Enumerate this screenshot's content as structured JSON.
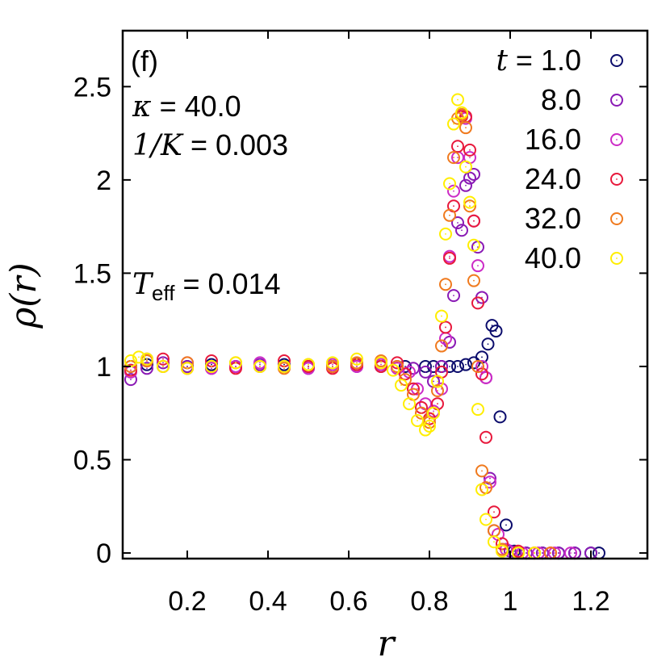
{
  "chart_data": {
    "type": "scatter",
    "panel_label": "(f)",
    "xlabel": "r",
    "ylabel": "ρ(r)",
    "xlim": [
      0.04,
      1.34
    ],
    "ylim": [
      -0.03,
      2.8
    ],
    "xticks": [
      {
        "value": 0.2,
        "label": "0.2"
      },
      {
        "value": 0.4,
        "label": "0.4"
      },
      {
        "value": 0.6,
        "label": "0.6"
      },
      {
        "value": 0.8,
        "label": "0.8"
      },
      {
        "value": 1.0,
        "label": "1"
      },
      {
        "value": 1.2,
        "label": "1.2"
      }
    ],
    "yticks": [
      {
        "value": 0,
        "label": "0"
      },
      {
        "value": 0.5,
        "label": "0.5"
      },
      {
        "value": 1,
        "label": "1"
      },
      {
        "value": 1.5,
        "label": "1.5"
      },
      {
        "value": 2,
        "label": "2"
      },
      {
        "value": 2.5,
        "label": "2.5"
      }
    ],
    "grid": false,
    "legend_position": "top-right",
    "annotations": {
      "kappa": {
        "symbol": "κ",
        "text": " = 40.0"
      },
      "inv_k": {
        "symbol": "1/K",
        "text": " = 0.003"
      },
      "t_eff": {
        "symbol": "T",
        "subscript": "eff",
        "text": " = 0.014"
      }
    },
    "legend_prefix": "t = ",
    "series": [
      {
        "name": "1.0",
        "color": "#0b0c6c",
        "x": [
          0.06,
          0.1,
          0.14,
          0.2,
          0.26,
          0.32,
          0.38,
          0.44,
          0.5,
          0.56,
          0.62,
          0.68,
          0.74,
          0.79,
          0.81,
          0.83,
          0.85,
          0.87,
          0.89,
          0.91,
          0.93,
          0.945,
          0.955,
          0.965,
          0.975,
          0.99,
          1.01,
          1.04,
          1.08,
          1.12,
          1.16,
          1.2,
          1.22
        ],
        "y": [
          1.0,
          1.01,
          1.0,
          1.0,
          1.01,
          1.0,
          1.0,
          1.01,
          1.0,
          1.0,
          1.01,
          1.0,
          1.0,
          1.0,
          1.0,
          1.0,
          1.0,
          1.0,
          1.01,
          1.02,
          1.05,
          1.12,
          1.22,
          1.19,
          0.73,
          0.15,
          0.01,
          0.0,
          0.0,
          0.0,
          0.0,
          0.0,
          0.0
        ]
      },
      {
        "name": "8.0",
        "color": "#8a1ab5",
        "x": [
          0.06,
          0.1,
          0.14,
          0.2,
          0.26,
          0.32,
          0.38,
          0.44,
          0.5,
          0.56,
          0.62,
          0.68,
          0.72,
          0.76,
          0.79,
          0.81,
          0.83,
          0.85,
          0.86,
          0.87,
          0.88,
          0.89,
          0.9,
          0.91,
          0.92,
          0.93,
          0.94,
          0.95,
          0.96,
          0.98,
          1.0,
          1.04,
          1.08,
          1.12,
          1.16,
          1.2
        ],
        "y": [
          0.93,
          0.99,
          1.02,
          1.0,
          0.99,
          1.0,
          1.01,
          1.0,
          0.99,
          1.0,
          1.0,
          1.0,
          1.0,
          0.99,
          0.97,
          0.92,
          1.0,
          1.13,
          1.38,
          1.77,
          1.73,
          1.97,
          2.01,
          2.03,
          1.64,
          1.37,
          0.94,
          0.4,
          0.12,
          0.02,
          0.01,
          0.0,
          0.0,
          0.0,
          0.0,
          0.0
        ]
      },
      {
        "name": "16.0",
        "color": "#cc2bc6",
        "x": [
          0.06,
          0.1,
          0.14,
          0.2,
          0.26,
          0.32,
          0.38,
          0.44,
          0.5,
          0.56,
          0.62,
          0.68,
          0.72,
          0.75,
          0.77,
          0.79,
          0.81,
          0.83,
          0.84,
          0.85,
          0.86,
          0.87,
          0.88,
          0.89,
          0.9,
          0.91,
          0.92,
          0.93,
          0.94,
          0.95,
          0.97,
          0.99,
          1.03,
          1.07,
          1.11,
          1.15
        ],
        "y": [
          0.97,
          1.04,
          1.0,
          1.02,
          0.99,
          1.0,
          1.02,
          1.0,
          0.99,
          1.01,
          1.0,
          1.01,
          0.99,
          0.97,
          0.88,
          0.8,
          0.76,
          0.88,
          1.15,
          1.59,
          1.94,
          2.12,
          2.35,
          2.33,
          2.12,
          1.78,
          1.54,
          1.0,
          0.94,
          0.38,
          0.1,
          0.02,
          0.0,
          0.0,
          0.0,
          0.0
        ]
      },
      {
        "name": "24.0",
        "color": "#e8193c",
        "x": [
          0.06,
          0.1,
          0.14,
          0.2,
          0.26,
          0.32,
          0.38,
          0.44,
          0.5,
          0.56,
          0.62,
          0.68,
          0.72,
          0.74,
          0.76,
          0.78,
          0.8,
          0.82,
          0.83,
          0.84,
          0.85,
          0.86,
          0.87,
          0.88,
          0.89,
          0.9,
          0.91,
          0.92,
          0.93,
          0.94,
          0.96,
          0.98,
          1.02,
          1.06,
          1.1
        ],
        "y": [
          0.98,
          1.03,
          1.04,
          0.99,
          1.03,
          0.99,
          1.0,
          1.03,
          1.0,
          0.99,
          1.01,
          1.0,
          1.02,
          0.96,
          0.88,
          0.78,
          0.72,
          0.8,
          0.97,
          1.21,
          1.58,
          1.86,
          2.18,
          2.34,
          2.34,
          2.16,
          1.78,
          1.34,
          0.96,
          0.62,
          0.22,
          0.05,
          0.01,
          0.0,
          0.0
        ]
      },
      {
        "name": "32.0",
        "color": "#f07a1e",
        "x": [
          0.06,
          0.1,
          0.14,
          0.2,
          0.26,
          0.32,
          0.38,
          0.44,
          0.5,
          0.56,
          0.62,
          0.68,
          0.72,
          0.74,
          0.76,
          0.78,
          0.8,
          0.81,
          0.82,
          0.83,
          0.84,
          0.85,
          0.86,
          0.87,
          0.88,
          0.89,
          0.9,
          0.91,
          0.92,
          0.93,
          0.94,
          0.96,
          0.98,
          1.02,
          1.06,
          1.1
        ],
        "y": [
          1.0,
          1.03,
          1.0,
          1.02,
          1.0,
          1.02,
          1.0,
          0.99,
          1.01,
          1.0,
          1.02,
          1.03,
          1.0,
          0.93,
          0.85,
          0.75,
          0.7,
          0.75,
          0.87,
          1.11,
          1.44,
          1.81,
          2.12,
          2.33,
          2.35,
          2.28,
          1.86,
          1.46,
          1.0,
          0.44,
          0.35,
          0.12,
          0.02,
          0.0,
          0.0,
          0.0
        ]
      },
      {
        "name": "40.0",
        "color": "#ffee00",
        "x": [
          0.06,
          0.08,
          0.1,
          0.14,
          0.2,
          0.26,
          0.32,
          0.38,
          0.44,
          0.5,
          0.56,
          0.62,
          0.68,
          0.71,
          0.73,
          0.75,
          0.77,
          0.79,
          0.8,
          0.81,
          0.82,
          0.83,
          0.84,
          0.85,
          0.86,
          0.87,
          0.88,
          0.89,
          0.9,
          0.91,
          0.92,
          0.93,
          0.94,
          0.96,
          0.98,
          1.02,
          1.06
        ],
        "y": [
          1.03,
          1.05,
          1.04,
          1.0,
          0.99,
          1.0,
          1.02,
          1.0,
          1.0,
          1.01,
          1.02,
          1.04,
          1.02,
          0.98,
          0.9,
          0.8,
          0.71,
          0.66,
          0.68,
          0.75,
          0.92,
          1.27,
          1.71,
          1.98,
          2.3,
          2.43,
          2.36,
          2.07,
          1.88,
          1.65,
          0.77,
          0.34,
          0.18,
          0.06,
          0.01,
          0.0,
          0.0
        ]
      }
    ]
  }
}
